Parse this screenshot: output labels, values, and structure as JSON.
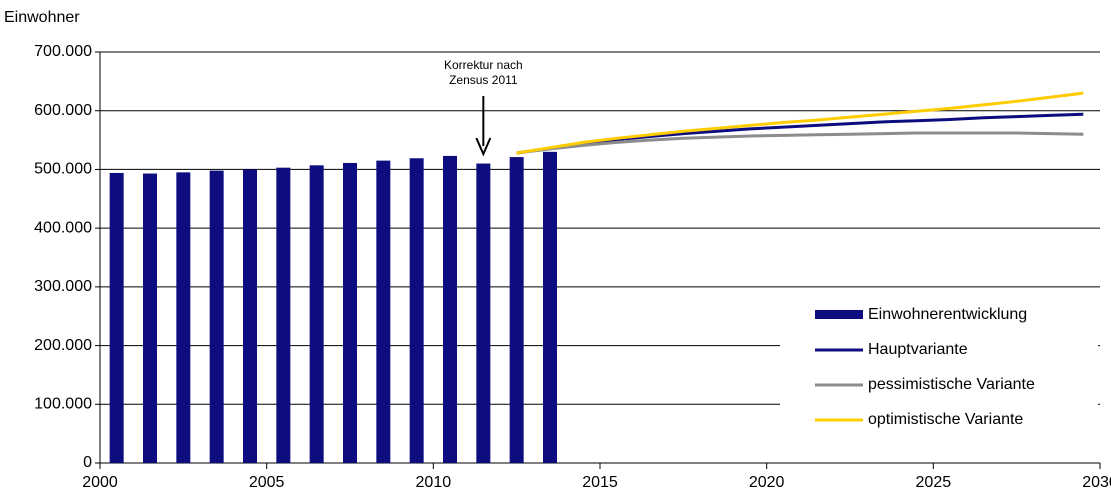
{
  "chart_data": {
    "type": "bar-line",
    "y_axis_label": "Einwohner",
    "annotation": [
      "Korrektur nach",
      "Zensus 2011"
    ],
    "annotation_x": 2011,
    "xlim": [
      2000,
      2030
    ],
    "xticks": [
      2000,
      2005,
      2010,
      2015,
      2020,
      2025,
      2030
    ],
    "ylim": [
      0,
      700000
    ],
    "yticks": [
      0,
      {
        "value": 100000,
        "label": "100.000"
      },
      {
        "value": 200000,
        "label": "200.000"
      },
      {
        "value": 300000,
        "label": "300.000"
      },
      {
        "value": 400000,
        "label": "400.000"
      },
      {
        "value": 500000,
        "label": "500.000"
      },
      {
        "value": 600000,
        "label": "600.000"
      },
      {
        "value": 700000,
        "label": "700.000"
      }
    ],
    "grid": true,
    "legend": "lower right",
    "bars": {
      "name": "Einwohnerentwicklung",
      "color": "#0d0d80",
      "x": [
        2000,
        2001,
        2002,
        2003,
        2004,
        2005,
        2006,
        2007,
        2008,
        2009,
        2010,
        2011,
        2012,
        2013
      ],
      "values": [
        494000,
        493000,
        495000,
        498000,
        500000,
        503000,
        507000,
        511000,
        515000,
        519000,
        523000,
        510000,
        521000,
        530000
      ]
    },
    "lines_x": [
      2012,
      2013,
      2014,
      2015,
      2016,
      2017,
      2018,
      2019,
      2020,
      2021,
      2022,
      2023,
      2024,
      2025,
      2026,
      2027,
      2028,
      2029
    ],
    "series": [
      {
        "name": "Hauptvariante",
        "color": "#0d0d80",
        "values": [
          528000,
          536000,
          544000,
          551000,
          556000,
          561000,
          565000,
          569000,
          572000,
          575000,
          578000,
          581000,
          583000,
          585000,
          588000,
          590000,
          592000,
          594000
        ]
      },
      {
        "name": "pessimistische Variante",
        "color": "#8c8c8c",
        "values": [
          528000,
          535000,
          541000,
          546000,
          550000,
          553000,
          555000,
          557000,
          558000,
          559000,
          560000,
          561000,
          562000,
          562000,
          562000,
          562000,
          561000,
          560000
        ]
      },
      {
        "name": "optimistische Variante",
        "color": "#ffcc00",
        "values": [
          528000,
          537000,
          546000,
          553000,
          559000,
          565000,
          570000,
          575000,
          580000,
          584000,
          589000,
          594000,
          599000,
          604000,
          610000,
          616000,
          623000,
          630000
        ]
      }
    ]
  }
}
